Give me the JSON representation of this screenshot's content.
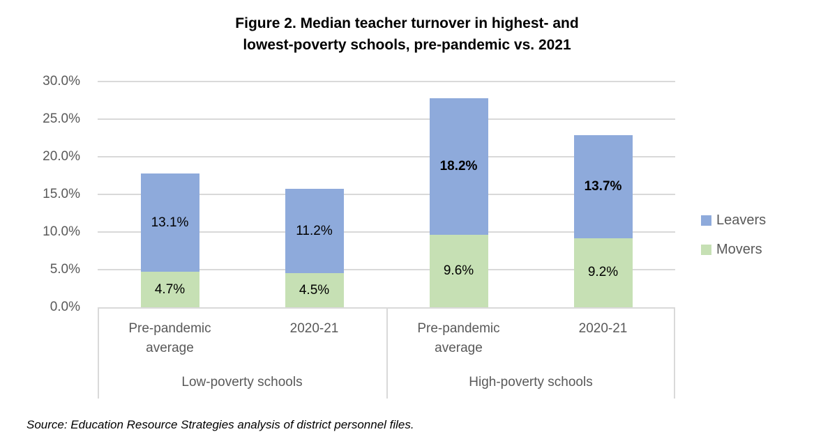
{
  "chart_data": {
    "type": "bar",
    "stacked": true,
    "title": "Figure 2. Median teacher turnover in highest- and lowest-poverty schools, pre-pandemic vs. 2021",
    "title_lines": [
      "Figure 2. Median teacher turnover in highest- and",
      "lowest-poverty schools, pre-pandemic vs. 2021"
    ],
    "ylim": [
      0,
      30
    ],
    "grid": true,
    "y_ticks": [
      {
        "value": 30,
        "label": "30.0%"
      },
      {
        "value": 25,
        "label": "25.0%"
      },
      {
        "value": 20,
        "label": "20.0%"
      },
      {
        "value": 15,
        "label": "15.0%"
      },
      {
        "value": 10,
        "label": "10.0%"
      },
      {
        "value": 5,
        "label": "5.0%"
      },
      {
        "value": 0,
        "label": "0.0%"
      }
    ],
    "groups": [
      {
        "label": "Low-poverty schools",
        "categories": [
          "Pre-pandemic average",
          "2020-21"
        ]
      },
      {
        "label": "High-poverty schools",
        "categories": [
          "Pre-pandemic average",
          "2020-21"
        ]
      }
    ],
    "series": [
      {
        "name": "Movers",
        "color": "#C6E0B4",
        "values": [
          4.7,
          4.5,
          9.6,
          9.2
        ],
        "data_labels": [
          "4.7%",
          "4.5%",
          "9.6%",
          "9.2%"
        ],
        "bold_labels": [
          false,
          false,
          false,
          false
        ]
      },
      {
        "name": "Leavers",
        "color": "#8EAADB",
        "values": [
          13.1,
          11.2,
          18.2,
          13.7
        ],
        "data_labels": [
          "13.1%",
          "11.2%",
          "18.2%",
          "13.7%"
        ],
        "bold_labels": [
          false,
          false,
          true,
          true
        ]
      }
    ],
    "legend": {
      "position": "right",
      "items": [
        {
          "label": "Leavers",
          "color": "#8EAADB"
        },
        {
          "label": "Movers",
          "color": "#C6E0B4"
        }
      ]
    }
  },
  "colors": {
    "gridline": "#D9D9D9",
    "box_border": "#D9D9D9",
    "axis_text": "#595959",
    "data_label": "#000000",
    "title_text": "#000000"
  },
  "source_note": "Source: Education Resource Strategies analysis of district personnel files."
}
